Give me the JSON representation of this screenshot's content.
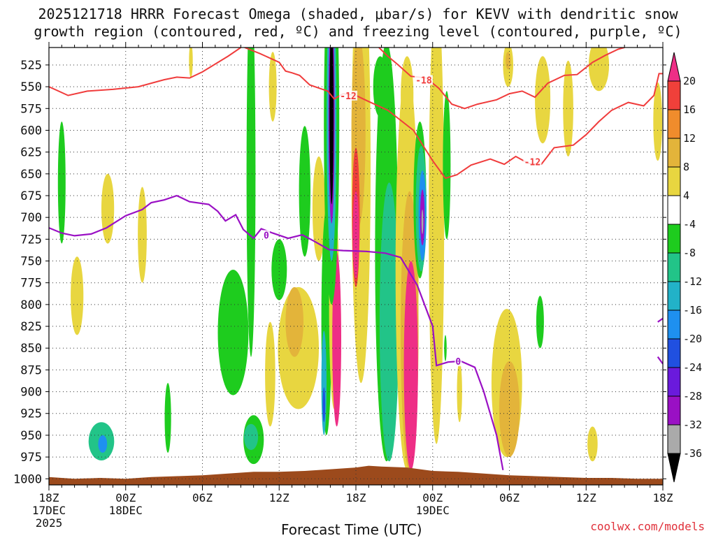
{
  "title_line1": "2025121718 HRRR Forecast Omega (shaded, μbar/s) for KEVV with dendritic snow",
  "title_line2": "growth region (contoured, red, ºC) and freezing level (contoured, purple, ºC)",
  "credit": "coolwx.com/models",
  "chart_data": {
    "type": "heatmap",
    "title": "2025121718 HRRR Forecast Omega (shaded, μbar/s) for KEVV with dendritic snow growth region (contoured, red, ºC) and freezing level (contoured, purple, ºC)",
    "xlabel": "Forecast Time (UTC)",
    "ylabel": "",
    "x_unit": "forecast hour from 2025-12-17 18Z",
    "xlim": [
      0,
      48
    ],
    "ylim": [
      1007,
      505
    ],
    "y_ticks": [
      525,
      550,
      575,
      600,
      625,
      650,
      675,
      700,
      725,
      750,
      775,
      800,
      825,
      850,
      875,
      900,
      925,
      950,
      975,
      1000
    ],
    "x_ticks": [
      {
        "x": 0,
        "label": "18Z",
        "sub1": "17DEC",
        "sub2": "2025"
      },
      {
        "x": 6,
        "label": "00Z",
        "sub1": "18DEC",
        "sub2": ""
      },
      {
        "x": 12,
        "label": "06Z",
        "sub1": "",
        "sub2": ""
      },
      {
        "x": 18,
        "label": "12Z",
        "sub1": "",
        "sub2": ""
      },
      {
        "x": 24,
        "label": "18Z",
        "sub1": "",
        "sub2": ""
      },
      {
        "x": 30,
        "label": "00Z",
        "sub1": "19DEC",
        "sub2": ""
      },
      {
        "x": 36,
        "label": "06Z",
        "sub1": "",
        "sub2": ""
      },
      {
        "x": 42,
        "label": "12Z",
        "sub1": "",
        "sub2": ""
      },
      {
        "x": 48,
        "label": "18Z",
        "sub1": "",
        "sub2": ""
      }
    ],
    "colorbar": {
      "labels": [
        20,
        16,
        12,
        8,
        4,
        -4,
        -8,
        -12,
        -16,
        -20,
        -24,
        -28,
        -32,
        -36
      ],
      "bins": [
        {
          "lo": 20,
          "hi": 99,
          "color": "#ee2e86"
        },
        {
          "lo": 16,
          "hi": 20,
          "color": "#f0403a"
        },
        {
          "lo": 12,
          "hi": 16,
          "color": "#f08c2c"
        },
        {
          "lo": 8,
          "hi": 12,
          "color": "#e3b43a"
        },
        {
          "lo": 4,
          "hi": 8,
          "color": "#e8d640"
        },
        {
          "lo": -4,
          "hi": 4,
          "color": "#ffffff"
        },
        {
          "lo": -8,
          "hi": -4,
          "color": "#1ecc1e"
        },
        {
          "lo": -12,
          "hi": -8,
          "color": "#22c488"
        },
        {
          "lo": -16,
          "hi": -12,
          "color": "#22b2c8"
        },
        {
          "lo": -20,
          "hi": -16,
          "color": "#1e90f0"
        },
        {
          "lo": -24,
          "hi": -20,
          "color": "#2050e0"
        },
        {
          "lo": -28,
          "hi": -24,
          "color": "#6a1adc"
        },
        {
          "lo": -32,
          "hi": -28,
          "color": "#9a10c4"
        },
        {
          "lo": -36,
          "hi": -32,
          "color": "#aaaaaa"
        },
        {
          "lo": -99,
          "hi": -36,
          "color": "#000000"
        }
      ]
    },
    "omega_blobs": [
      {
        "x": 1.0,
        "p": 660,
        "rx": 0.3,
        "rp": 70,
        "value": -6
      },
      {
        "x": 2.2,
        "p": 790,
        "rx": 0.5,
        "rp": 45,
        "value": 5
      },
      {
        "x": 4.6,
        "p": 690,
        "rx": 0.5,
        "rp": 40,
        "value": 5
      },
      {
        "x": 4.1,
        "p": 957,
        "rx": 1.0,
        "rp": 22,
        "value": -12
      },
      {
        "x": 4.2,
        "p": 960,
        "rx": 0.35,
        "rp": 10,
        "value": -17
      },
      {
        "x": 7.3,
        "p": 720,
        "rx": 0.35,
        "rp": 55,
        "value": 5
      },
      {
        "x": 9.3,
        "p": 930,
        "rx": 0.25,
        "rp": 40,
        "value": -6
      },
      {
        "x": 11.1,
        "p": 520,
        "rx": 0.15,
        "rp": 20,
        "value": 5
      },
      {
        "x": 15.8,
        "p": 650,
        "rx": 0.35,
        "rp": 210,
        "value": -6
      },
      {
        "x": 17.3,
        "p": 880,
        "rx": 0.4,
        "rp": 60,
        "value": 5
      },
      {
        "x": 17.5,
        "p": 550,
        "rx": 0.3,
        "rp": 40,
        "value": 5
      },
      {
        "x": 18.0,
        "p": 760,
        "rx": 0.6,
        "rp": 35,
        "value": -6
      },
      {
        "x": 20.0,
        "p": 670,
        "rx": 0.45,
        "rp": 75,
        "value": -5
      },
      {
        "x": 14.4,
        "p": 832,
        "rx": 1.2,
        "rp": 72,
        "value": -6
      },
      {
        "x": 16.0,
        "p": 955,
        "rx": 0.8,
        "rp": 28,
        "value": -6
      },
      {
        "x": 15.8,
        "p": 952,
        "rx": 0.55,
        "rp": 15,
        "value": -11
      },
      {
        "x": 19.5,
        "p": 850,
        "rx": 1.6,
        "rp": 70,
        "value": 5
      },
      {
        "x": 19.2,
        "p": 820,
        "rx": 0.7,
        "rp": 40,
        "value": 10
      },
      {
        "x": 21.1,
        "p": 690,
        "rx": 0.5,
        "rp": 60,
        "value": 5
      },
      {
        "x": 21.7,
        "p": 820,
        "rx": 0.4,
        "rp": 130,
        "value": -6
      },
      {
        "x": 21.5,
        "p": 890,
        "rx": 0.2,
        "rp": 60,
        "value": -13
      },
      {
        "x": 21.5,
        "p": 915,
        "rx": 0.1,
        "rp": 20,
        "value": -22
      },
      {
        "x": 22.3,
        "p": 800,
        "rx": 0.4,
        "rp": 120,
        "value": 5
      },
      {
        "x": 22.5,
        "p": 840,
        "rx": 0.35,
        "rp": 100,
        "value": 22
      },
      {
        "x": 21.9,
        "p": 530,
        "rx": 0.3,
        "rp": 60,
        "value": 5
      },
      {
        "x": 22.2,
        "p": 580,
        "rx": 0.3,
        "rp": 60,
        "value": 5
      },
      {
        "x": 22.1,
        "p": 595,
        "rx": 0.6,
        "rp": 205,
        "value": -6
      },
      {
        "x": 22.1,
        "p": 590,
        "rx": 0.38,
        "rp": 160,
        "value": -16
      },
      {
        "x": 22.1,
        "p": 582,
        "rx": 0.24,
        "rp": 125,
        "value": -30
      },
      {
        "x": 22.1,
        "p": 580,
        "rx": 0.16,
        "rp": 105,
        "value": -40
      },
      {
        "x": 24.4,
        "p": 640,
        "rx": 0.75,
        "rp": 250,
        "value": 5
      },
      {
        "x": 24.2,
        "p": 600,
        "rx": 0.55,
        "rp": 110,
        "value": 10
      },
      {
        "x": 24.0,
        "p": 700,
        "rx": 0.3,
        "rp": 80,
        "value": 18
      },
      {
        "x": 24.0,
        "p": 720,
        "rx": 0.25,
        "rp": 50,
        "value": 23
      },
      {
        "x": 26.4,
        "p": 740,
        "rx": 0.9,
        "rp": 240,
        "value": -6
      },
      {
        "x": 26.6,
        "p": 820,
        "rx": 0.75,
        "rp": 160,
        "value": -9
      },
      {
        "x": 25.9,
        "p": 550,
        "rx": 0.55,
        "rp": 35,
        "value": -6
      },
      {
        "x": 28.0,
        "p": 560,
        "rx": 0.5,
        "rp": 45,
        "value": 5
      },
      {
        "x": 28.0,
        "p": 760,
        "rx": 0.9,
        "rp": 230,
        "value": 5
      },
      {
        "x": 28.2,
        "p": 830,
        "rx": 0.7,
        "rp": 160,
        "value": 10
      },
      {
        "x": 28.3,
        "p": 870,
        "rx": 0.55,
        "rp": 120,
        "value": 23
      },
      {
        "x": 29.0,
        "p": 680,
        "rx": 0.5,
        "rp": 90,
        "value": -6
      },
      {
        "x": 29.1,
        "p": 690,
        "rx": 0.42,
        "rp": 72,
        "value": -12
      },
      {
        "x": 29.2,
        "p": 698,
        "rx": 0.3,
        "rp": 52,
        "value": -20
      },
      {
        "x": 29.2,
        "p": 700,
        "rx": 0.18,
        "rp": 32,
        "value": -30
      },
      {
        "x": 29.2,
        "p": 705,
        "rx": 0.07,
        "rp": 14,
        "value": -34
      },
      {
        "x": 30.3,
        "p": 700,
        "rx": 0.6,
        "rp": 260,
        "value": 5
      },
      {
        "x": 31.1,
        "p": 640,
        "rx": 0.3,
        "rp": 85,
        "value": -6
      },
      {
        "x": 31.0,
        "p": 850,
        "rx": 0.1,
        "rp": 15,
        "value": -6
      },
      {
        "x": 32.1,
        "p": 900,
        "rx": 0.2,
        "rp": 35,
        "value": 5
      },
      {
        "x": 35.8,
        "p": 890,
        "rx": 1.2,
        "rp": 85,
        "value": 5
      },
      {
        "x": 36.0,
        "p": 920,
        "rx": 0.8,
        "rp": 55,
        "value": 10
      },
      {
        "x": 35.9,
        "p": 525,
        "rx": 0.4,
        "rp": 25,
        "value": 5
      },
      {
        "x": 35.9,
        "p": 520,
        "rx": 0.2,
        "rp": 10,
        "value": 10
      },
      {
        "x": 38.6,
        "p": 565,
        "rx": 0.6,
        "rp": 50,
        "value": 5
      },
      {
        "x": 38.4,
        "p": 820,
        "rx": 0.3,
        "rp": 30,
        "value": -6
      },
      {
        "x": 40.6,
        "p": 575,
        "rx": 0.4,
        "rp": 55,
        "value": 5
      },
      {
        "x": 43.0,
        "p": 525,
        "rx": 0.8,
        "rp": 30,
        "value": 5
      },
      {
        "x": 47.6,
        "p": 590,
        "rx": 0.35,
        "rp": 45,
        "value": 5
      },
      {
        "x": 42.5,
        "p": 960,
        "rx": 0.4,
        "rp": 20,
        "value": 5
      }
    ],
    "dgz_contours": [
      {
        "label": "-12",
        "points": [
          [
            0,
            550
          ],
          [
            1.5,
            560
          ],
          [
            3,
            555
          ],
          [
            5,
            553
          ],
          [
            7,
            550
          ],
          [
            9,
            542
          ],
          [
            10,
            539
          ],
          [
            11,
            540
          ],
          [
            12,
            533
          ],
          [
            14,
            515
          ],
          [
            15,
            505
          ]
        ]
      },
      {
        "label": "-12",
        "points": [
          [
            15.3,
            505
          ],
          [
            16.5,
            512
          ],
          [
            18,
            522
          ],
          [
            18.5,
            532
          ],
          [
            19,
            534
          ],
          [
            19.6,
            537
          ],
          [
            20.4,
            548
          ],
          [
            21.8,
            555
          ],
          [
            22.3,
            564
          ],
          [
            23,
            558
          ],
          [
            24,
            560
          ],
          [
            25,
            567
          ],
          [
            26.5,
            577
          ],
          [
            28.5,
            600
          ],
          [
            30,
            635
          ],
          [
            31,
            655
          ],
          [
            31.9,
            651
          ],
          [
            33,
            640
          ],
          [
            34.5,
            633
          ],
          [
            35.6,
            639
          ],
          [
            36.5,
            630
          ],
          [
            37.5,
            638
          ],
          [
            38.5,
            639
          ],
          [
            39.5,
            620
          ],
          [
            41,
            617
          ],
          [
            42,
            605
          ],
          [
            43,
            590
          ],
          [
            44,
            577
          ],
          [
            45.3,
            568
          ],
          [
            46.5,
            572
          ],
          [
            47.3,
            560
          ],
          [
            47.7,
            535
          ],
          [
            48,
            535
          ]
        ]
      },
      {
        "label": "-18",
        "points": [
          [
            25.8,
            505
          ],
          [
            26.5,
            515
          ],
          [
            27.3,
            525
          ],
          [
            28.3,
            538
          ],
          [
            29.5,
            540
          ],
          [
            30.5,
            552
          ],
          [
            31.5,
            570
          ],
          [
            32.5,
            575
          ],
          [
            33.5,
            570
          ],
          [
            35,
            565
          ],
          [
            36,
            558
          ],
          [
            37,
            555
          ],
          [
            38,
            562
          ],
          [
            39,
            546
          ],
          [
            40.3,
            537
          ],
          [
            41.3,
            536
          ],
          [
            42.5,
            522
          ],
          [
            43.5,
            514
          ],
          [
            44.5,
            507
          ],
          [
            45,
            505
          ]
        ]
      }
    ],
    "freezing_contours": [
      {
        "label": "0",
        "points": [
          [
            0,
            712
          ],
          [
            1,
            718
          ],
          [
            2,
            721
          ],
          [
            3.3,
            719
          ],
          [
            4.5,
            712
          ],
          [
            6,
            698
          ],
          [
            7.3,
            691
          ],
          [
            8,
            683
          ],
          [
            9,
            680
          ],
          [
            10,
            675
          ],
          [
            11,
            682
          ],
          [
            12.5,
            685
          ],
          [
            13.2,
            693
          ],
          [
            13.8,
            704
          ],
          [
            14.6,
            697
          ],
          [
            15.2,
            714
          ],
          [
            16,
            724
          ],
          [
            16.6,
            713
          ],
          [
            17.5,
            718
          ],
          [
            18.7,
            724
          ],
          [
            19.8,
            720
          ],
          [
            20.7,
            727
          ],
          [
            21.9,
            737
          ],
          [
            23,
            738
          ],
          [
            24.8,
            739
          ],
          [
            26.3,
            741
          ],
          [
            27.5,
            746
          ],
          [
            28.8,
            778
          ],
          [
            30,
            825
          ],
          [
            30.3,
            870
          ],
          [
            31.2,
            866
          ],
          [
            32.2,
            865
          ],
          [
            33.3,
            872
          ],
          [
            34,
            900
          ],
          [
            35,
            950
          ],
          [
            35.5,
            990
          ]
        ]
      },
      {
        "label": "",
        "points": [
          [
            47.6,
            820
          ],
          [
            48,
            816
          ]
        ]
      },
      {
        "label": "",
        "points": [
          [
            47.6,
            860
          ],
          [
            48,
            868
          ]
        ]
      }
    ],
    "terrain": [
      [
        0,
        998
      ],
      [
        2,
        1000
      ],
      [
        4,
        999
      ],
      [
        6,
        1000
      ],
      [
        8,
        998
      ],
      [
        10,
        997
      ],
      [
        12,
        996
      ],
      [
        14,
        994
      ],
      [
        16,
        992
      ],
      [
        18,
        992
      ],
      [
        20,
        991
      ],
      [
        22,
        989
      ],
      [
        24,
        987
      ],
      [
        25,
        985
      ],
      [
        26,
        986
      ],
      [
        28,
        987
      ],
      [
        30,
        991
      ],
      [
        32,
        992
      ],
      [
        34,
        994
      ],
      [
        36,
        996
      ],
      [
        38,
        997
      ],
      [
        40,
        998
      ],
      [
        42,
        999
      ],
      [
        44,
        999
      ],
      [
        46,
        1000
      ],
      [
        48,
        1000
      ]
    ],
    "contour_labels": [
      {
        "text": "-12",
        "x": 23.4,
        "p": 561,
        "color": "#f03c3c"
      },
      {
        "text": "-18",
        "x": 29.3,
        "p": 543,
        "color": "#f03c3c"
      },
      {
        "text": "-12",
        "x": 37.8,
        "p": 637,
        "color": "#f03c3c"
      },
      {
        "text": "0",
        "x": 17.0,
        "p": 721,
        "color": "#9a10c4"
      },
      {
        "text": "0",
        "x": 32.0,
        "p": 866,
        "color": "#9a10c4"
      }
    ]
  }
}
